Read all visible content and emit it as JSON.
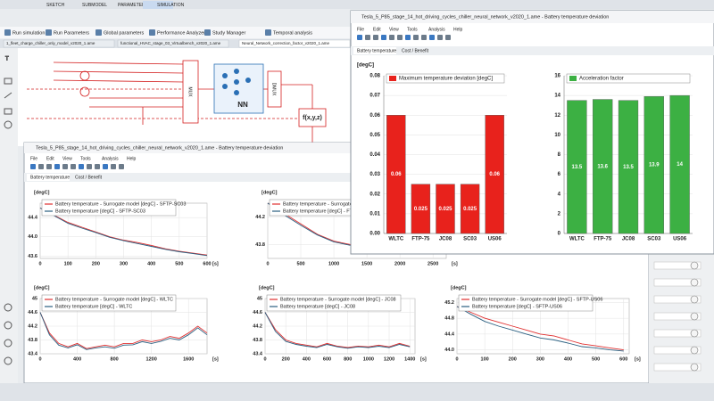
{
  "app": {
    "tabs": [
      "SKETCH",
      "SUBMODEL",
      "PARAMETER",
      "SIMULATION"
    ],
    "toolbar": [
      "Run simulation",
      "Run Parameters",
      "Global parameters",
      "Performance Analyzer",
      "Study Manager",
      "Temporal analysis"
    ],
    "files": [
      "1_fleet_charge_chiller_only_model_v2020_1.ame",
      "functional_HVAC_stage_03_Virtualbench_v2020_1.ame",
      "Neural_Network_correction_factor_v2020_1.ame"
    ]
  },
  "diagram": {
    "blocks": [
      "MUX",
      "NN",
      "DMUX",
      "f(x,y,z)"
    ]
  },
  "back_window": {
    "title": "Tesla_5_P85_stage_14_hot_driving_cycles_chiller_neural_network_v2020_1.ame - Battery temperature deviation",
    "menu": [
      "File",
      "Edit",
      "View",
      "Tools",
      "Analysis",
      "Help"
    ],
    "tabs": [
      "Battery temperature",
      "Cost / Benefit"
    ],
    "charts": [
      {
        "type": "line",
        "y_label": "[degC]",
        "x_label": "[s]",
        "x": [
          0,
          50,
          100,
          150,
          200,
          250,
          300,
          350,
          400,
          450,
          500,
          550,
          600
        ],
        "xlim": [
          0,
          600
        ],
        "xticks": [
          0,
          100,
          200,
          300,
          400,
          500,
          600
        ],
        "ylim": [
          43.55,
          44.7
        ],
        "yticks": [
          43.6,
          {
            "value": 44,
            "label": "44.0"
          },
          44.4
        ],
        "series": [
          {
            "name": "Battery temperature - Surrogate model [degC] - SFTP-SC03",
            "color": "#e03030",
            "values": [
              44.6,
              44.45,
              44.3,
              44.2,
              44.1,
              44.0,
              43.93,
              43.88,
              43.82,
              43.75,
              43.7,
              43.66,
              43.62
            ]
          },
          {
            "name": "Battery temperature [degC] - SFTP-SC03",
            "color": "#2a5f80",
            "values": [
              44.6,
              44.44,
              44.28,
              44.18,
              44.09,
              43.99,
              43.92,
              43.86,
              43.8,
              43.74,
              43.69,
              43.65,
              43.61
            ]
          }
        ]
      },
      {
        "type": "line",
        "y_label": "[degC]",
        "x_label": "[s]",
        "x": [
          0,
          250,
          500,
          750,
          1000,
          1250,
          1500,
          1750,
          2000,
          2250,
          2500,
          2700
        ],
        "xlim": [
          0,
          2700
        ],
        "xticks": [
          0,
          500,
          1000,
          1500,
          2000,
          2500
        ],
        "ylim": [
          43.6,
          44.4
        ],
        "yticks": [
          43.8,
          44.2
        ],
        "series": [
          {
            "name": "Battery temperature - Surrogate",
            "color": "#e03030",
            "values": [
              44.4,
              44.25,
              44.1,
              43.95,
              43.85,
              43.8,
              43.76,
              43.74,
              43.72,
              43.71,
              43.7,
              43.7
            ]
          },
          {
            "name": "Battery temperature [degC] - FT",
            "color": "#2a5f80",
            "values": [
              44.4,
              44.23,
              44.08,
              43.94,
              43.84,
              43.79,
              43.75,
              43.73,
              43.71,
              43.7,
              43.69,
              43.69
            ]
          }
        ]
      },
      {
        "type": "line",
        "y_label": "[degC]",
        "x_label": "[s]",
        "x": [
          0,
          100,
          200,
          300,
          400,
          500,
          600,
          700,
          800,
          900,
          1000,
          1100,
          1200,
          1300,
          1400,
          1500,
          1600,
          1700,
          1800
        ],
        "xlim": [
          0,
          1800
        ],
        "xticks": [
          0,
          400,
          800,
          1200,
          1600
        ],
        "ylim": [
          43.4,
          45
        ],
        "yticks": [
          43.4,
          43.8,
          44.2,
          44.6,
          45
        ],
        "series": [
          {
            "name": "Battery temperature - Surrogate model [degC] - WLTC",
            "color": "#e03030",
            "values": [
              44.6,
              44.0,
              43.7,
              43.6,
              43.7,
              43.55,
              43.6,
              43.65,
              43.6,
              43.7,
              43.7,
              43.8,
              43.75,
              43.8,
              43.9,
              43.85,
              44.0,
              44.2,
              44.0
            ]
          },
          {
            "name": "Battery temperature [degC] - WLTC",
            "color": "#2a5f80",
            "values": [
              44.6,
              43.95,
              43.65,
              43.57,
              43.66,
              43.52,
              43.57,
              43.6,
              43.56,
              43.65,
              43.66,
              43.75,
              43.7,
              43.76,
              43.85,
              43.8,
              43.95,
              44.15,
              43.95
            ]
          }
        ]
      },
      {
        "type": "line",
        "y_label": "[degC]",
        "x_label": "[s]",
        "x": [
          0,
          100,
          200,
          300,
          400,
          500,
          600,
          700,
          800,
          900,
          1000,
          1100,
          1200,
          1300,
          1400
        ],
        "xlim": [
          0,
          1450
        ],
        "xticks": [
          0,
          200,
          400,
          600,
          800,
          1000,
          1200,
          1400
        ],
        "ylim": [
          43.4,
          45
        ],
        "yticks": [
          43.4,
          43.8,
          44.2,
          44.6,
          45
        ],
        "series": [
          {
            "name": "Battery temperature - Surrogate model [degC] - JC08",
            "color": "#e03030",
            "values": [
              44.6,
              44.1,
              43.8,
              43.7,
              43.65,
              43.6,
              43.7,
              43.62,
              43.58,
              43.62,
              43.6,
              43.65,
              43.6,
              43.7,
              43.62
            ]
          },
          {
            "name": "Battery temperature [degC] - JC08",
            "color": "#2a5f80",
            "values": [
              44.6,
              44.05,
              43.76,
              43.67,
              43.62,
              43.58,
              43.67,
              43.6,
              43.56,
              43.6,
              43.58,
              43.62,
              43.58,
              43.67,
              43.6
            ]
          }
        ]
      },
      {
        "type": "line",
        "y_label": "[degC]",
        "x_label": "[s]",
        "x": [
          0,
          50,
          100,
          150,
          200,
          250,
          300,
          350,
          400,
          450,
          500,
          550,
          600
        ],
        "xlim": [
          0,
          620
        ],
        "xticks": [
          0,
          100,
          200,
          300,
          400,
          500,
          600
        ],
        "ylim": [
          43.9,
          45.3
        ],
        "yticks": [
          {
            "value": 44,
            "label": "44.0"
          },
          44.4,
          44.8,
          45.2
        ],
        "series": [
          {
            "name": "Battery temperature - Surrogate model [degC] - SFTP-US06",
            "color": "#e03030",
            "values": [
              45.1,
              44.95,
              44.8,
              44.7,
              44.6,
              44.5,
              44.4,
              44.35,
              44.25,
              44.15,
              44.1,
              44.05,
              44.0
            ]
          },
          {
            "name": "Battery temperature [degC] - SFTP-US06",
            "color": "#2a5f80",
            "values": [
              45.1,
              44.9,
              44.72,
              44.6,
              44.5,
              44.4,
              44.3,
              44.25,
              44.17,
              44.08,
              44.05,
              44.0,
              43.97
            ]
          }
        ]
      }
    ]
  },
  "front_window": {
    "title": "Tesla_5_P85_stage_14_hot_driving_cycles_chiller_neural_network_v2020_1.ame - Battery temperature deviation",
    "menu": [
      "File",
      "Edit",
      "View",
      "Tools",
      "Analysis",
      "Help"
    ],
    "tabs": [
      "Battery temperature",
      "Cost / Benefit"
    ],
    "charts": [
      {
        "type": "bar",
        "y_label": "[degC]",
        "legend": "Maximum temperature deviation [degC]",
        "color": "#e8221c",
        "categories": [
          "WLTC",
          "FTP-75",
          "JC08",
          "SC03",
          "US06"
        ],
        "values": [
          0.06,
          0.025,
          0.025,
          0.025,
          0.06
        ],
        "ylim": [
          0,
          0.08
        ],
        "yticks": [
          {
            "value": 0,
            "label": "0.00"
          },
          {
            "value": 0.01,
            "label": "0.01"
          },
          {
            "value": 0.02,
            "label": "0.02"
          },
          {
            "value": 0.03,
            "label": "0.03"
          },
          {
            "value": 0.04,
            "label": "0.04"
          },
          {
            "value": 0.05,
            "label": "0.05"
          },
          {
            "value": 0.06,
            "label": "0.06"
          },
          {
            "value": 0.07,
            "label": "0.07"
          },
          {
            "value": 0.08,
            "label": "0.08"
          }
        ]
      },
      {
        "type": "bar",
        "legend": "Acceleration factor",
        "color": "#3cb043",
        "categories": [
          "WLTC",
          "FTP-75",
          "JC08",
          "SC03",
          "US06"
        ],
        "values": [
          13.5,
          13.6,
          13.5,
          13.9,
          14
        ],
        "ylim": [
          0,
          16
        ],
        "yticks": [
          0,
          2,
          4,
          6,
          8,
          10,
          12,
          14,
          16
        ]
      }
    ]
  }
}
